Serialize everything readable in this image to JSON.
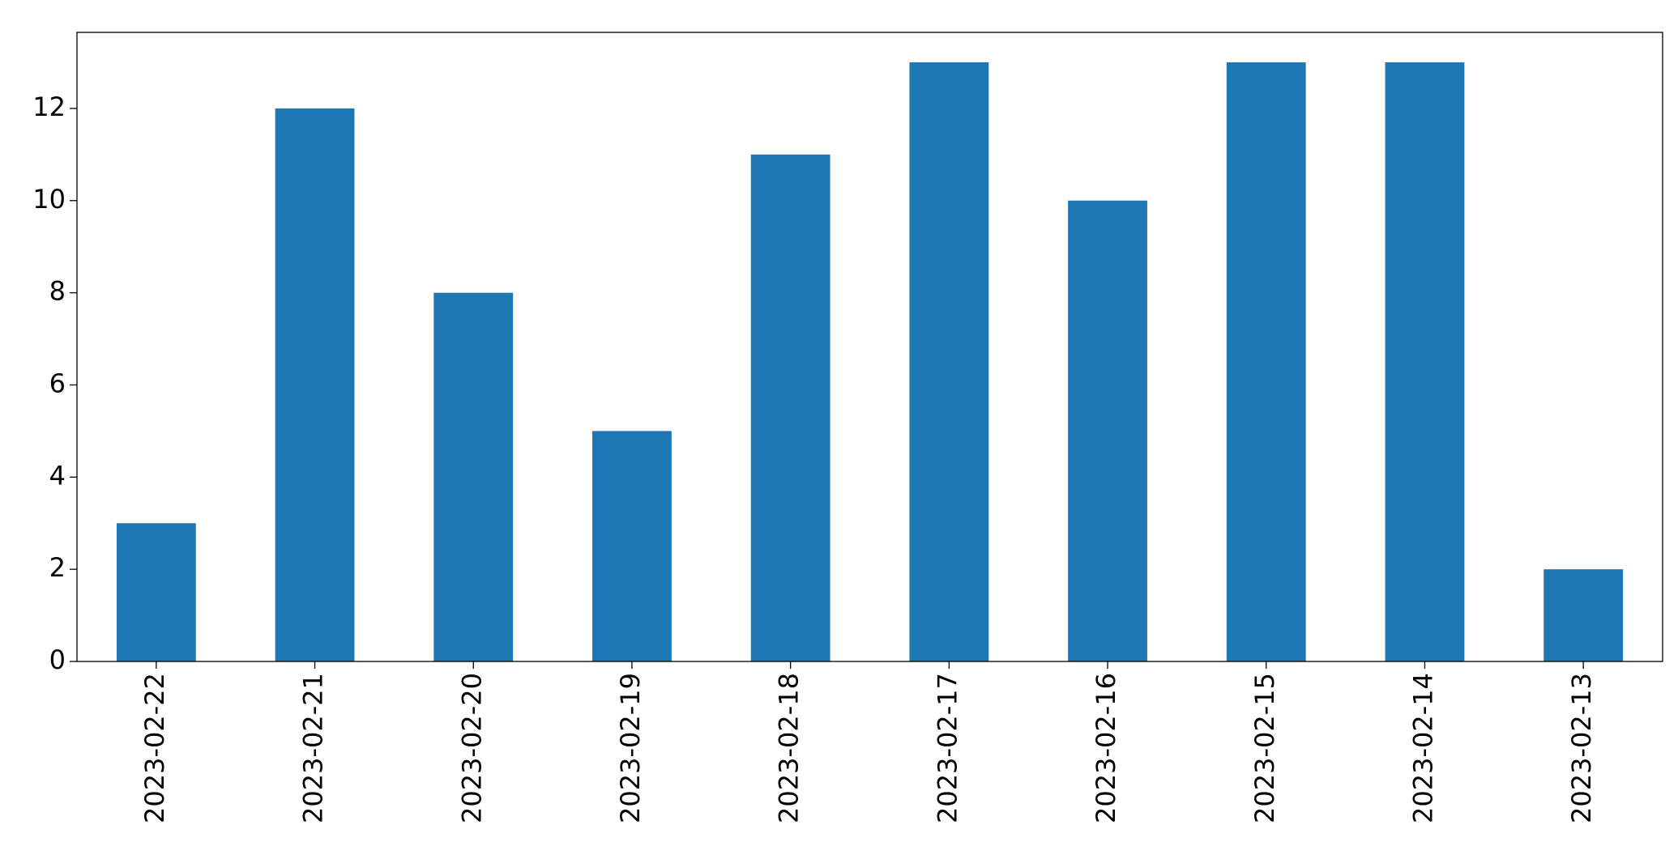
{
  "chart_data": {
    "type": "bar",
    "categories": [
      "2023-02-22",
      "2023-02-21",
      "2023-02-20",
      "2023-02-19",
      "2023-02-18",
      "2023-02-17",
      "2023-02-16",
      "2023-02-15",
      "2023-02-14",
      "2023-02-13"
    ],
    "values": [
      3,
      12,
      8,
      5,
      11,
      13,
      10,
      13,
      13,
      2
    ],
    "color": "#1f77b4",
    "ylim": [
      0,
      13.65
    ],
    "yticks": [
      0,
      2,
      4,
      6,
      8,
      10,
      12
    ],
    "grid": false
  }
}
